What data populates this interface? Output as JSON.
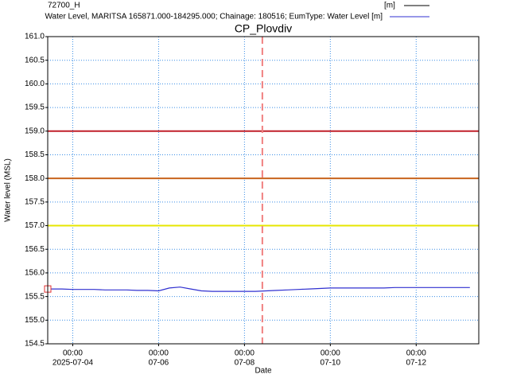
{
  "chart_data": {
    "type": "line",
    "title": "CP_Plovdiv",
    "ylabel": "Water level (MSL)",
    "xlabel": "Date",
    "xlim": [
      "2025-07-03 10:00",
      "2025-07-13 11:00"
    ],
    "xticks": [
      {
        "value": "2025-07-04 00:00",
        "label": [
          "00:00",
          "2025-07-04"
        ]
      },
      {
        "value": "2025-07-06 00:00",
        "label": [
          "00:00",
          "07-06"
        ]
      },
      {
        "value": "2025-07-08 00:00",
        "label": [
          "00:00",
          "07-08"
        ]
      },
      {
        "value": "2025-07-10 00:00",
        "label": [
          "00:00",
          "07-10"
        ]
      },
      {
        "value": "2025-07-12 00:00",
        "label": [
          "00:00",
          "07-12"
        ]
      }
    ],
    "ylim": [
      154.5,
      161.0
    ],
    "yticks": [
      {
        "value": 154.5,
        "label": "154.5"
      },
      {
        "value": 155.0,
        "label": "155.0"
      },
      {
        "value": 155.5,
        "label": "155.5"
      },
      {
        "value": 156.0,
        "label": "156.0"
      },
      {
        "value": 156.5,
        "label": "156.5"
      },
      {
        "value": 157.0,
        "label": "157.0"
      },
      {
        "value": 157.5,
        "label": "157.5"
      },
      {
        "value": 158.0,
        "label": "158.0"
      },
      {
        "value": 158.5,
        "label": "158.5"
      },
      {
        "value": 159.0,
        "label": "159.0"
      },
      {
        "value": 159.5,
        "label": "159.5"
      },
      {
        "value": 160.0,
        "label": "160.0"
      },
      {
        "value": 160.5,
        "label": "160.5"
      },
      {
        "value": 161.0,
        "label": "161.0"
      }
    ],
    "grid": true,
    "grid_color": "#3a8ee6",
    "hlines": [
      {
        "value": 159.0,
        "color": "#c0202a"
      },
      {
        "value": 158.0,
        "color": "#c8641e"
      },
      {
        "value": 157.0,
        "color": "#e6e600"
      }
    ],
    "vline": {
      "x": "2025-07-08 10:00",
      "color": "#f08080"
    },
    "point": {
      "x": "2025-07-03 10:00",
      "y": 155.66,
      "color": "#e03030"
    },
    "series": [
      {
        "name": "72700_H",
        "unit": "[m]",
        "color": "#000000"
      },
      {
        "name": "Water Level, MARITSA 165871.000-184295.000; Chainage: 180516; EumType: Water Level [m]",
        "color": "#3030d0",
        "x": [
          "2025-07-03 12:00",
          "2025-07-03 18:00",
          "2025-07-04 00:00",
          "2025-07-04 06:00",
          "2025-07-04 12:00",
          "2025-07-04 18:00",
          "2025-07-05 00:00",
          "2025-07-05 06:00",
          "2025-07-05 12:00",
          "2025-07-05 18:00",
          "2025-07-06 00:00",
          "2025-07-06 06:00",
          "2025-07-06 12:00",
          "2025-07-06 18:00",
          "2025-07-07 00:00",
          "2025-07-07 06:00",
          "2025-07-07 12:00",
          "2025-07-07 18:00",
          "2025-07-08 00:00",
          "2025-07-08 06:00",
          "2025-07-08 12:00",
          "2025-07-08 18:00",
          "2025-07-09 00:00",
          "2025-07-09 06:00",
          "2025-07-09 12:00",
          "2025-07-09 18:00",
          "2025-07-10 00:00",
          "2025-07-10 06:00",
          "2025-07-10 12:00",
          "2025-07-10 18:00",
          "2025-07-11 00:00",
          "2025-07-11 06:00",
          "2025-07-11 12:00",
          "2025-07-11 18:00",
          "2025-07-12 00:00",
          "2025-07-12 06:00",
          "2025-07-12 12:00",
          "2025-07-12 18:00",
          "2025-07-13 00:00",
          "2025-07-13 06:00"
        ],
        "values": [
          155.66,
          155.66,
          155.65,
          155.65,
          155.65,
          155.64,
          155.64,
          155.64,
          155.63,
          155.63,
          155.62,
          155.68,
          155.7,
          155.66,
          155.62,
          155.61,
          155.61,
          155.61,
          155.61,
          155.61,
          155.62,
          155.63,
          155.64,
          155.65,
          155.66,
          155.67,
          155.68,
          155.68,
          155.68,
          155.68,
          155.68,
          155.68,
          155.69,
          155.69,
          155.69,
          155.69,
          155.69,
          155.69,
          155.69,
          155.69
        ]
      }
    ]
  }
}
